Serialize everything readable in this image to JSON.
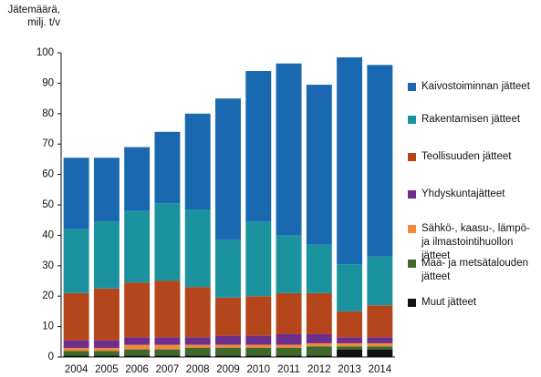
{
  "chart_data": {
    "type": "stacked_bar",
    "y_axis_title": "Jätemäärä, milj. t/v",
    "categories": [
      "2004",
      "2005",
      "2006",
      "2007",
      "2008",
      "2009",
      "2010",
      "2011",
      "2012",
      "2013",
      "2014"
    ],
    "series": [
      {
        "name": "Muut jätteet",
        "color": "#111111",
        "values": [
          0.5,
          0.5,
          0.5,
          0.5,
          0.5,
          0.5,
          0.5,
          0.5,
          0.5,
          2.5,
          2.5
        ]
      },
      {
        "name": "Maa- ja metsätalouden jätteet",
        "color": "#3e6b2b",
        "values": [
          1.5,
          1.5,
          2,
          2,
          2.5,
          2.5,
          2.5,
          2.5,
          3,
          1,
          1
        ]
      },
      {
        "name": "Sähkö-, kaasu-, lämpö- ja ilmastointihuollon jätteet",
        "color": "#f08a3a",
        "values": [
          1,
          1,
          1.5,
          1.5,
          1,
          1,
          1,
          1,
          1,
          1,
          1
        ]
      },
      {
        "name": "Yhdyskuntajätteet",
        "color": "#6e2f8c",
        "values": [
          2.5,
          2.5,
          2.5,
          2.5,
          2.5,
          3,
          3,
          3.5,
          3,
          2,
          2
        ]
      },
      {
        "name": "Teollisuuden jätteet",
        "color": "#b5461b",
        "values": [
          15.5,
          17,
          18,
          18.5,
          16.5,
          12.5,
          13,
          13.5,
          13.5,
          8.5,
          10.5
        ]
      },
      {
        "name": "Rakentamisen jätteet",
        "color": "#1b939e",
        "values": [
          21,
          22,
          23.5,
          25.5,
          25.5,
          19,
          24.5,
          19,
          16,
          15.5,
          16
        ]
      },
      {
        "name": "Kaivostoiminnan jätteet",
        "color": "#1a69b0",
        "values": [
          23.5,
          21,
          21,
          23.5,
          31.5,
          46.5,
          49.5,
          56.5,
          52.5,
          68,
          63
        ]
      }
    ],
    "ylim": [
      0,
      100
    ],
    "yticks": [
      0,
      10,
      20,
      30,
      40,
      50,
      60,
      70,
      80,
      90,
      100
    ],
    "grid": false
  }
}
